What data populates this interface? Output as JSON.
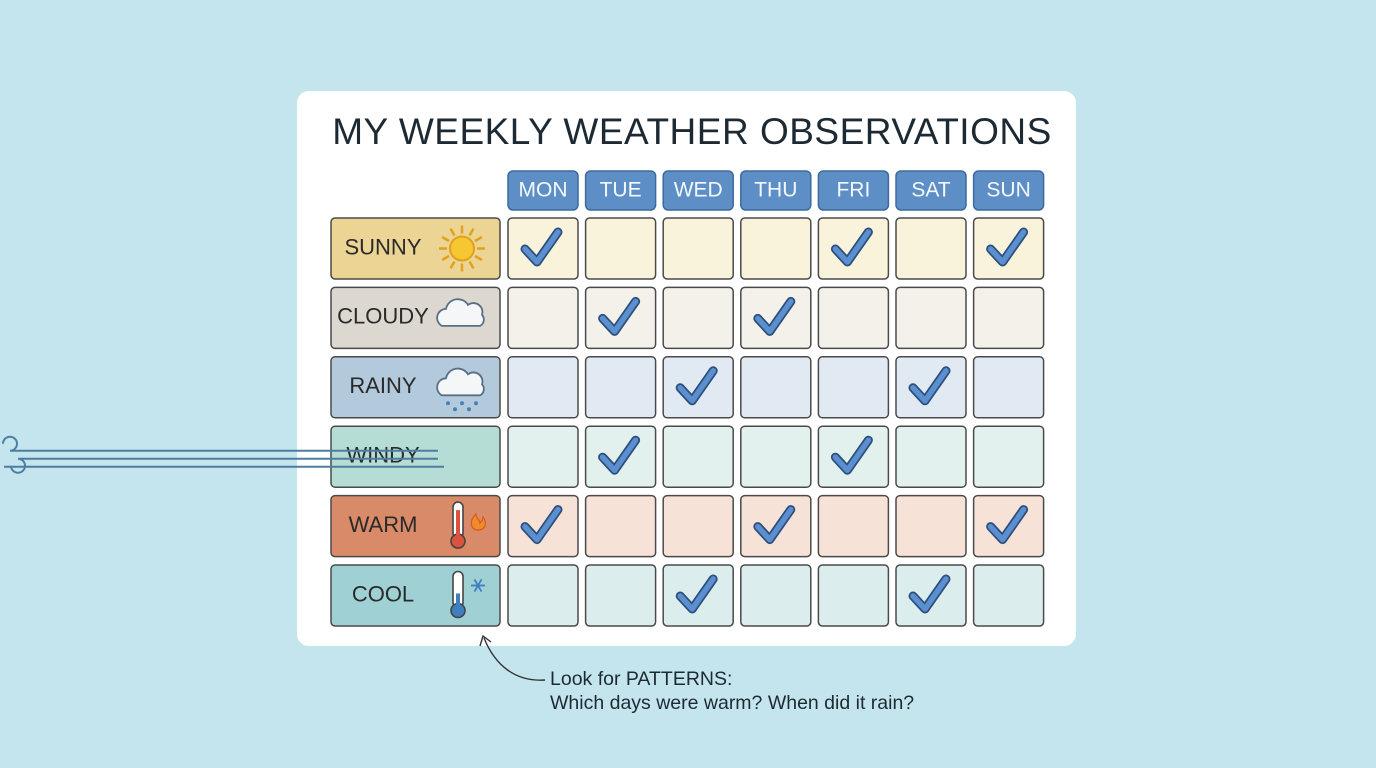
{
  "title": "MY WEEKLY WEATHER OBSERVATIONS",
  "days": [
    "MON",
    "TUE",
    "WED",
    "THU",
    "FRI",
    "SAT",
    "SUN"
  ],
  "rows": [
    {
      "label": "SUNNY",
      "checks": [
        true,
        false,
        false,
        false,
        true,
        false,
        true
      ]
    },
    {
      "label": "CLOUDY",
      "checks": [
        false,
        true,
        false,
        true,
        false,
        false,
        false
      ]
    },
    {
      "label": "RAINY",
      "checks": [
        false,
        false,
        true,
        false,
        false,
        true,
        false
      ]
    },
    {
      "label": "WINDY",
      "checks": [
        false,
        true,
        false,
        false,
        true,
        false,
        false
      ]
    },
    {
      "label": "WARM",
      "checks": [
        true,
        false,
        false,
        true,
        false,
        false,
        true
      ]
    },
    {
      "label": "COOL",
      "checks": [
        false,
        false,
        true,
        false,
        false,
        true,
        false
      ]
    }
  ],
  "note": [
    "Look for PATTERNS:",
    "Which days were warm? When did it rain?"
  ]
}
